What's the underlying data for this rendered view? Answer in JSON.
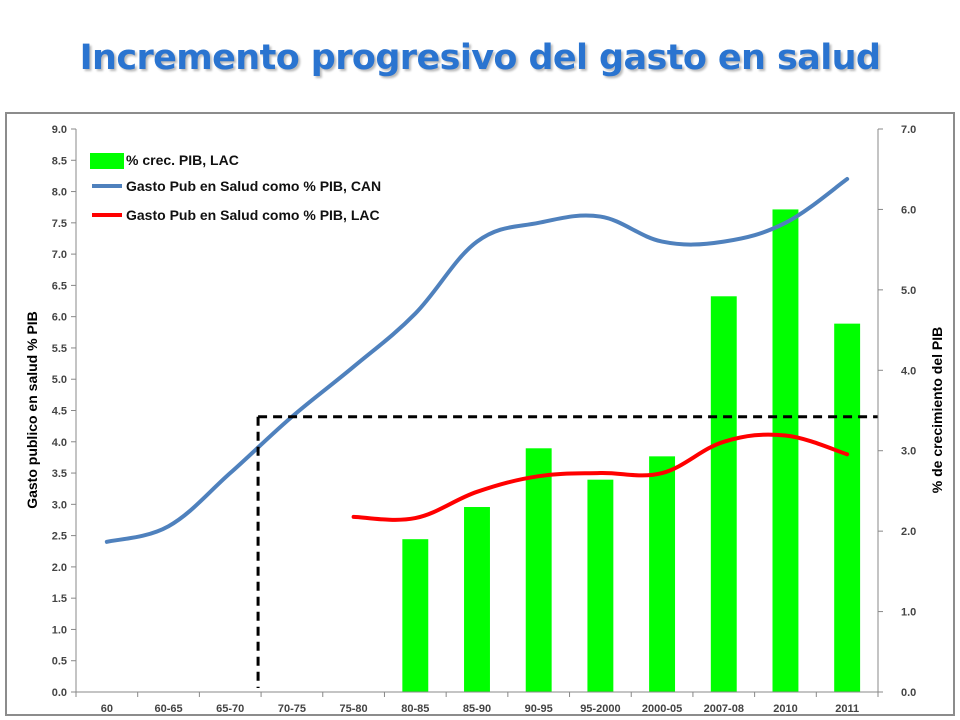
{
  "slide": {
    "title": "Incremento progresivo del gasto en salud"
  },
  "colors": {
    "title": "#2a74d0",
    "bars": "#00ff00",
    "can_line": "#4f81bd",
    "lac_line": "#ff0000",
    "reference": "#000000"
  },
  "chart_data": {
    "type": "bar",
    "categories": [
      "60",
      "60-65",
      "65-70",
      "70-75",
      "75-80",
      "80-85",
      "85-90",
      "90-95",
      "95-2000",
      "2000-05",
      "2007-08",
      "2010",
      "2011"
    ],
    "ylabel": "Gasto publico en salud % PIB",
    "y2label": "% de crecimiento del PIB",
    "ylim": [
      0,
      9
    ],
    "y2lim": [
      0,
      7
    ],
    "yticks": [
      "0.0",
      "0.5",
      "1.0",
      "1.5",
      "2.0",
      "2.5",
      "3.0",
      "3.5",
      "4.0",
      "4.5",
      "5.0",
      "5.5",
      "6.0",
      "6.5",
      "7.0",
      "7.5",
      "8.0",
      "8.5",
      "9.0"
    ],
    "y2ticks": [
      "0.0",
      "1.0",
      "2.0",
      "3.0",
      "4.0",
      "5.0",
      "6.0",
      "7.0"
    ],
    "legend_position": "top-left",
    "grid": false,
    "series": [
      {
        "name": "% crec. PIB, LAC",
        "type": "bar",
        "axis": "right",
        "values": [
          null,
          null,
          null,
          null,
          null,
          1.9,
          2.3,
          3.03,
          2.64,
          2.93,
          4.92,
          6.0,
          4.58
        ]
      },
      {
        "name": "Gasto Pub en Salud como % PIB, CAN",
        "type": "line",
        "axis": "left",
        "values": [
          2.4,
          2.65,
          3.5,
          4.4,
          5.2,
          6.05,
          7.2,
          7.5,
          7.6,
          7.2,
          7.2,
          7.5,
          8.2
        ]
      },
      {
        "name": "Gasto Pub en Salud como % PIB, LAC",
        "type": "line",
        "axis": "left",
        "values": [
          null,
          null,
          null,
          null,
          2.8,
          2.78,
          3.2,
          3.45,
          3.5,
          3.5,
          4.0,
          4.1,
          3.8
        ]
      }
    ],
    "reference_level": 4.4
  }
}
